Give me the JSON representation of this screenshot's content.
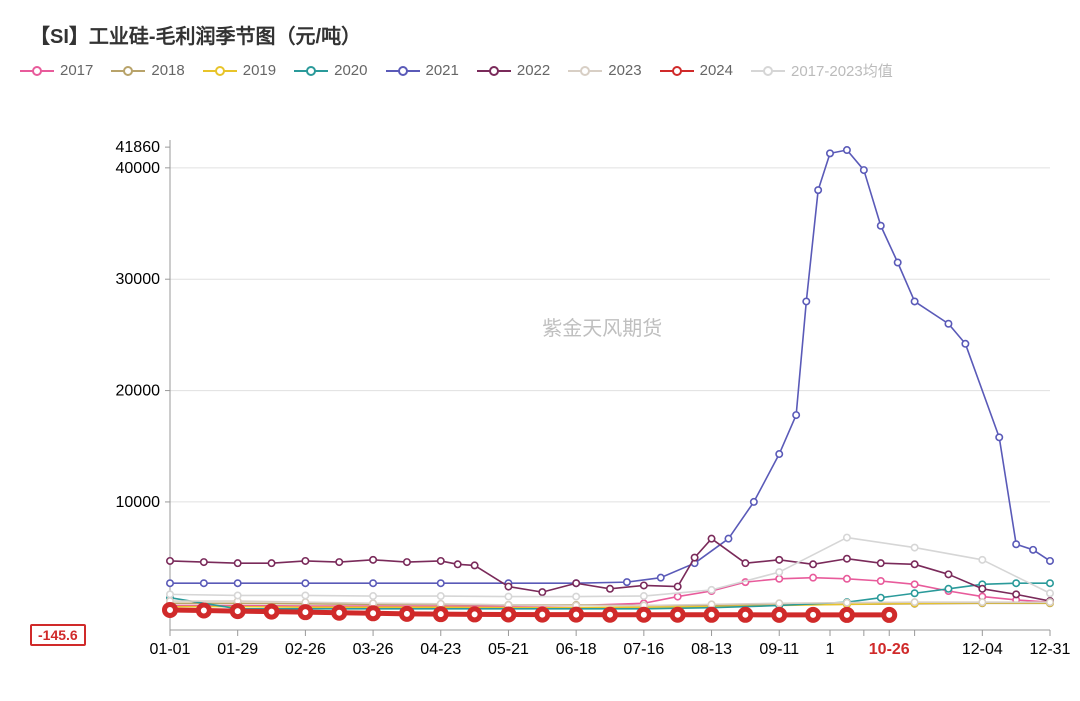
{
  "title": "【SI】工业硅-毛利润季节图（元/吨）",
  "watermark": "紫金天风期货",
  "chart": {
    "type": "line",
    "background_color": "#ffffff",
    "grid_color": "#e0e0e0",
    "axis_color": "#999999",
    "xlim": [
      0,
      52
    ],
    "ylim": [
      -1500,
      42500
    ],
    "ytick_values": [
      10000,
      20000,
      30000,
      40000,
      41860
    ],
    "ytick_labels": [
      "10000",
      "20000",
      "30000",
      "40000",
      "41860"
    ],
    "xtick_positions": [
      0,
      4,
      8,
      12,
      16,
      20,
      24,
      28,
      32,
      36,
      39,
      42.5,
      48,
      52
    ],
    "xtick_labels": [
      "01-01",
      "01-29",
      "02-26",
      "03-26",
      "04-23",
      "05-21",
      "06-18",
      "07-16",
      "08-13",
      "09-11",
      "1",
      "10-26",
      "12-04",
      "12-31"
    ],
    "xtick_highlight_index": 11,
    "y_highlight_label": "-145.6",
    "marker_radius": 3.2,
    "line_width": 1.6,
    "series": [
      {
        "name": "2017",
        "color": "#e85b9b",
        "x": [
          0,
          4,
          8,
          12,
          16,
          20,
          24,
          28,
          30,
          32,
          34,
          36,
          38,
          40,
          42,
          44,
          46,
          48,
          50,
          52
        ],
        "y": [
          700,
          700,
          650,
          650,
          650,
          650,
          700,
          900,
          1500,
          2000,
          2800,
          3100,
          3200,
          3100,
          2900,
          2600,
          2000,
          1500,
          1200,
          1000
        ]
      },
      {
        "name": "2018",
        "color": "#b8a36a",
        "x": [
          0,
          4,
          8,
          12,
          16,
          20,
          24,
          28,
          32,
          36,
          40,
          44,
          48,
          52
        ],
        "y": [
          900,
          900,
          850,
          800,
          800,
          750,
          750,
          700,
          700,
          750,
          800,
          850,
          900,
          900
        ]
      },
      {
        "name": "2019",
        "color": "#e8c42a",
        "x": [
          0,
          4,
          8,
          12,
          16,
          20,
          24,
          28,
          32,
          36,
          40,
          44,
          48,
          52
        ],
        "y": [
          600,
          600,
          550,
          550,
          550,
          500,
          500,
          550,
          600,
          700,
          800,
          900,
          950,
          950
        ]
      },
      {
        "name": "2020",
        "color": "#2a9a9a",
        "x": [
          0,
          4,
          8,
          12,
          16,
          20,
          24,
          28,
          32,
          36,
          40,
          42,
          44,
          46,
          48,
          50,
          52
        ],
        "y": [
          1400,
          400,
          400,
          400,
          400,
          400,
          400,
          400,
          500,
          700,
          1000,
          1400,
          1800,
          2200,
          2600,
          2700,
          2700
        ]
      },
      {
        "name": "2021",
        "color": "#5a5ab8",
        "x": [
          0,
          2,
          4,
          8,
          12,
          16,
          20,
          24,
          27,
          29,
          31,
          33,
          34.5,
          36,
          37,
          37.6,
          38.3,
          39,
          40,
          41,
          42,
          43,
          44,
          46,
          47,
          49,
          50,
          51,
          52
        ],
        "y": [
          2700,
          2700,
          2700,
          2700,
          2700,
          2700,
          2700,
          2700,
          2800,
          3200,
          4500,
          6700,
          10000,
          14300,
          17800,
          28000,
          38000,
          41300,
          41600,
          39800,
          34800,
          31500,
          28000,
          26000,
          24200,
          15800,
          6200,
          5700,
          4700
        ]
      },
      {
        "name": "2022",
        "color": "#7a2a5a",
        "x": [
          0,
          2,
          4,
          6,
          8,
          10,
          12,
          14,
          16,
          17,
          18,
          20,
          22,
          24,
          26,
          28,
          30,
          31,
          32,
          34,
          36,
          38,
          40,
          42,
          44,
          46,
          48,
          50,
          52
        ],
        "y": [
          4700,
          4600,
          4500,
          4500,
          4700,
          4600,
          4800,
          4600,
          4700,
          4400,
          4300,
          2400,
          1900,
          2700,
          2200,
          2500,
          2400,
          5000,
          6700,
          4500,
          4800,
          4400,
          4900,
          4500,
          4400,
          3500,
          2200,
          1700,
          1100
        ]
      },
      {
        "name": "2023",
        "color": "#d8cfc5",
        "x": [
          0,
          4,
          8,
          12,
          16,
          20,
          24,
          28,
          32,
          36,
          40,
          44,
          48,
          52
        ],
        "y": [
          1100,
          1100,
          1000,
          900,
          850,
          750,
          700,
          700,
          800,
          900,
          950,
          1000,
          1000,
          1000
        ]
      },
      {
        "name": "2024",
        "color": "#d02a2a",
        "line_width": 5,
        "marker_radius": 5.5,
        "x": [
          0,
          2,
          4,
          6,
          8,
          10,
          12,
          14,
          16,
          18,
          20,
          22,
          24,
          26,
          28,
          30,
          32,
          34,
          36,
          38,
          40,
          42.5
        ],
        "y": [
          300,
          250,
          200,
          150,
          100,
          50,
          0,
          -50,
          -80,
          -100,
          -110,
          -120,
          -120,
          -125,
          -130,
          -130,
          -135,
          -135,
          -140,
          -140,
          -145,
          -145.6
        ]
      },
      {
        "name": "2017-2023均值",
        "color": "#d6d6d6",
        "dim": true,
        "x": [
          0,
          4,
          8,
          12,
          16,
          20,
          24,
          28,
          32,
          36,
          40,
          44,
          48,
          52
        ],
        "y": [
          1700,
          1600,
          1600,
          1550,
          1550,
          1500,
          1500,
          1550,
          2100,
          3700,
          6800,
          5900,
          4800,
          1800
        ]
      }
    ]
  }
}
